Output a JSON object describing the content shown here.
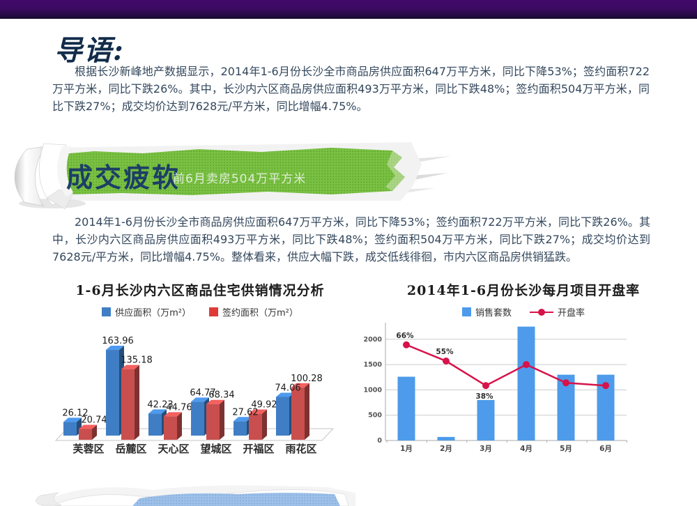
{
  "intro": {
    "heading": "导语:",
    "paragraph": "根据长沙新峰地产数据显示，2014年1-6月份长沙全市商品房供应面积647万平方米，同比下降53%；签约面积722万平方米，同比下跌26%。其中，长沙内六区商品房供应面积493万平方米，同比下跌48%；签约面积504万平方米，同比下跌27%；成交均价达到7628元/平方米，同比增幅4.75%。"
  },
  "section_banner": {
    "title": "成交疲软",
    "subtitle": "前6月卖房504万平方米",
    "brush_color": "#7ac143",
    "title_color": "#1c3e66"
  },
  "section_paragraph": "2014年1-6月份长沙全市商品房供应面积647万平方米，同比下降53%；签约面积722万平方米，同比下跌26%。其中，长沙内六区商品房供应面积493万平方米，同比下跌48%；签约面积504万平方米，同比下跌27%；成交均价达到7628元/平方米，同比增幅4.75%。整体看来，供应大幅下跌，成交低线徘徊，市内六区商品房供销猛跌。",
  "chart_data": [
    {
      "type": "bar",
      "style": "3d-grouped",
      "title": "1-6月长沙内六区商品住宅供销情况分析",
      "categories": [
        "芙蓉区",
        "岳麓区",
        "天心区",
        "望城区",
        "开福区",
        "雨花区"
      ],
      "series": [
        {
          "name": "供应面积（万m²）",
          "color": "#3f7ec5",
          "values": [
            26.12,
            163.96,
            42.23,
            64.77,
            27.62,
            74.06
          ]
        },
        {
          "name": "签约面积（万m²）",
          "color": "#c94f4e",
          "values": [
            20.74,
            135.18,
            44.76,
            68.34,
            49.92,
            100.28
          ]
        }
      ],
      "value_labels_shown": true,
      "legend_position": "top",
      "grid": false
    },
    {
      "type": "combo",
      "title": "2014年1-6月份长沙每月项目开盘率",
      "categories": [
        "1月",
        "2月",
        "3月",
        "4月",
        "5月",
        "6月"
      ],
      "y_ticks": [
        0,
        500,
        1000,
        1500,
        2000
      ],
      "ylim": [
        0,
        2300
      ],
      "grid": true,
      "legend_position": "top",
      "bar_series": {
        "name": "销售套数",
        "color": "#4d9bea",
        "values": [
          1260,
          70,
          800,
          2250,
          1300,
          1300
        ]
      },
      "line_series": {
        "name": "开盘率",
        "color": "#d6134a",
        "point_labels": [
          "66%",
          "55%",
          "38%",
          "",
          "",
          ""
        ],
        "values_primary_axis_est": [
          1890,
          1570,
          1085,
          1500,
          1140,
          1085
        ]
      }
    }
  ]
}
